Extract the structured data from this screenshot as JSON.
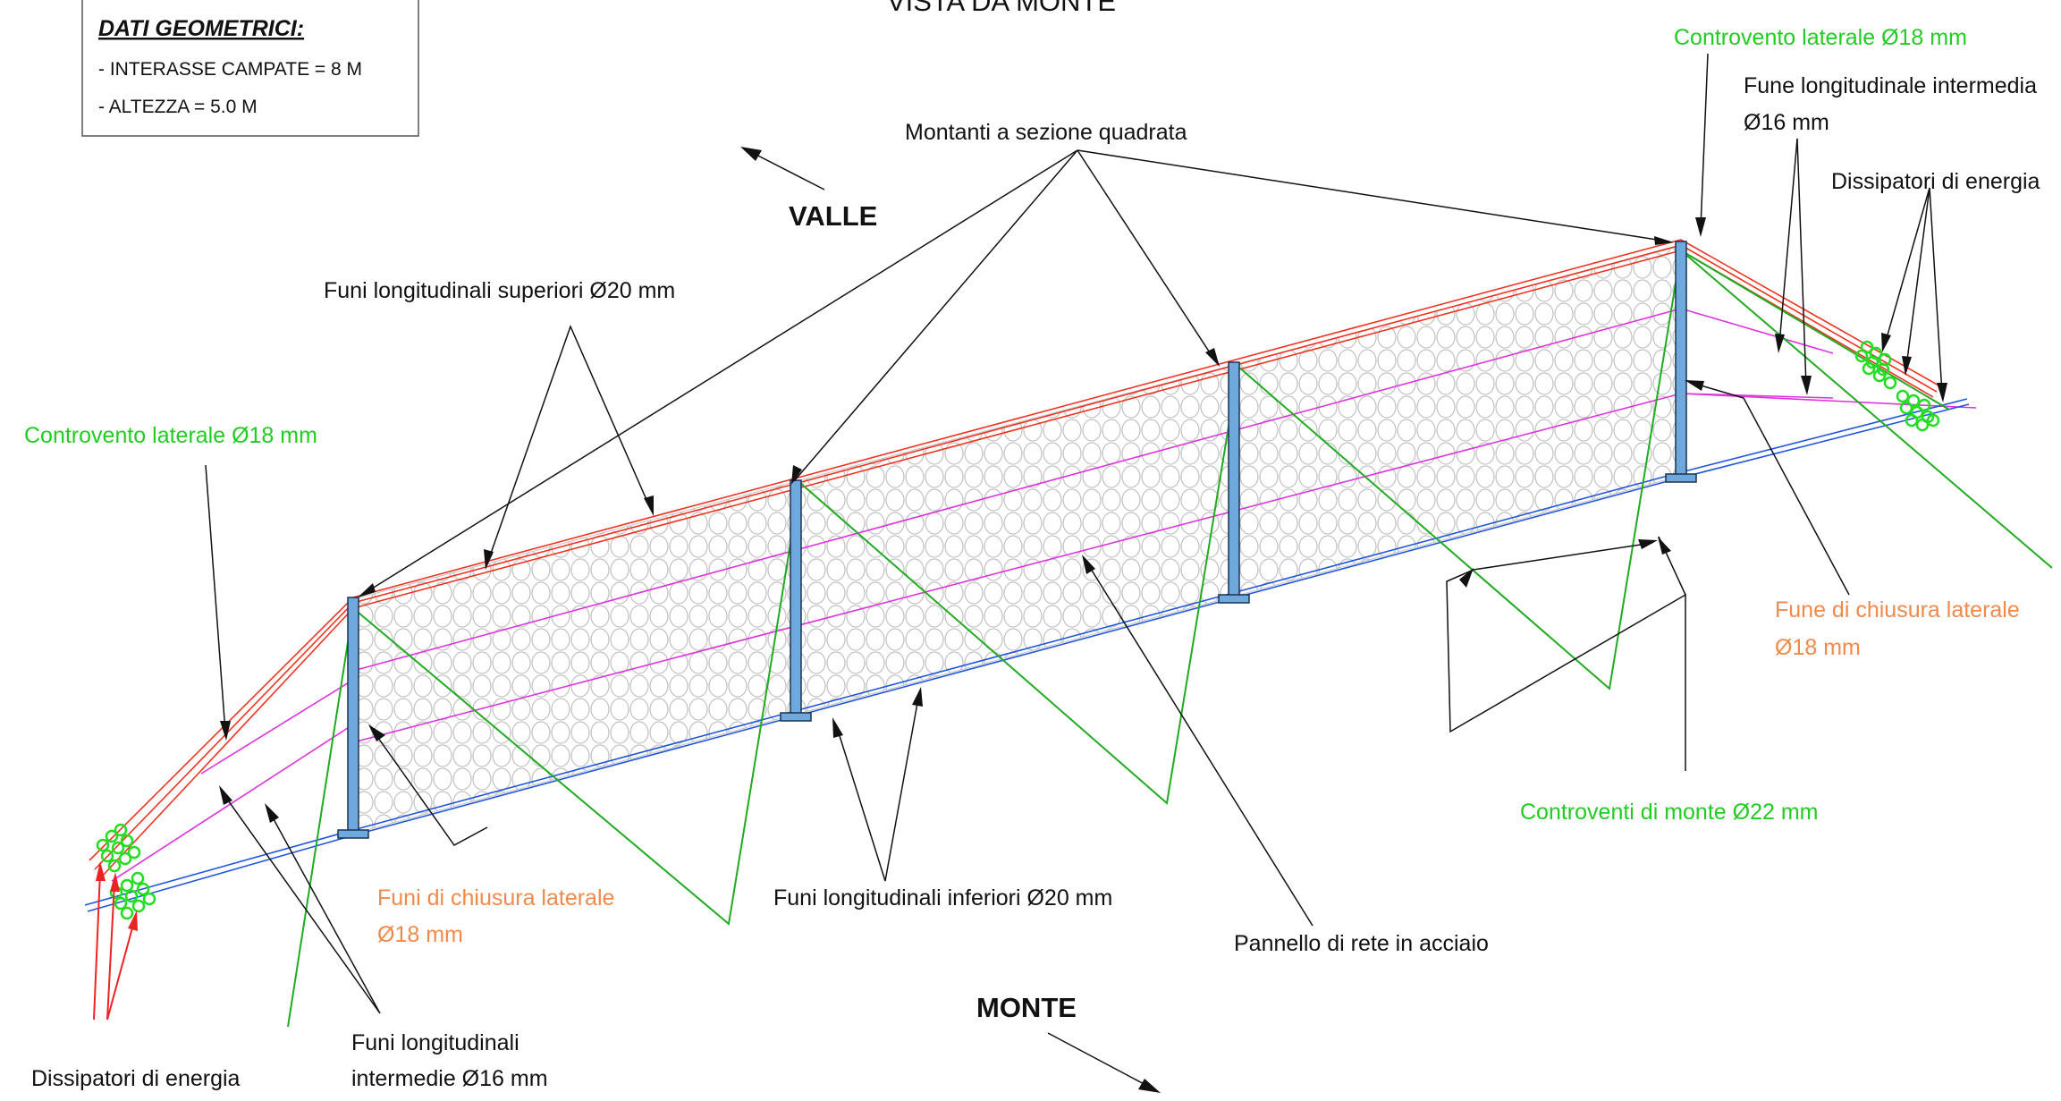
{
  "title": "VISTA DA MONTE",
  "info_box": {
    "heading": "DATI GEOMETRICI:",
    "line1": "- INTERASSE CAMPATE = 8 M",
    "line2": "- ALTEZZA = 5.0 M"
  },
  "directions": {
    "up": "VALLE",
    "down": "MONTE"
  },
  "labels": {
    "montanti": "Montanti a sezione quadrata",
    "funi_superiori": "Funi longitudinali superiori Ø20 mm",
    "controvento_left": "Controvento laterale Ø18 mm",
    "controvento_right": "Controvento laterale Ø18 mm",
    "fune_intermedia_right_1": "Fune longitudinale intermedia",
    "fune_intermedia_right_2": "Ø16 mm",
    "dissipatori_right": "Dissipatori di energia",
    "dissipatori_left": "Dissipatori di energia",
    "funi_chiusura_left_1": "Funi di chiusura laterale",
    "funi_chiusura_left_2": "Ø18 mm",
    "fune_chiusura_right_1": "Fune di chiusura laterale",
    "fune_chiusura_right_2": "Ø18 mm",
    "funi_inferiori": "Funi longitudinali inferiori Ø20 mm",
    "funi_intermedie_left_1": "Funi longitudinali",
    "funi_intermedie_left_2": "intermedie Ø16 mm",
    "pannello": "Pannello di rete in acciaio",
    "controventi_monte": "Controventi di monte Ø22 mm"
  },
  "colors": {
    "rope_top": "#ee3322",
    "rope_bottom": "#2255dd",
    "rope_intermediate": "#dd33dd",
    "bracing": "#22aa22",
    "dissipator": "#22dd22",
    "post": "#6fa8dc",
    "closing_rope": "#f08a4b",
    "dissipator_arrow": "#ee2222",
    "mesh": "#bfbfbf"
  }
}
